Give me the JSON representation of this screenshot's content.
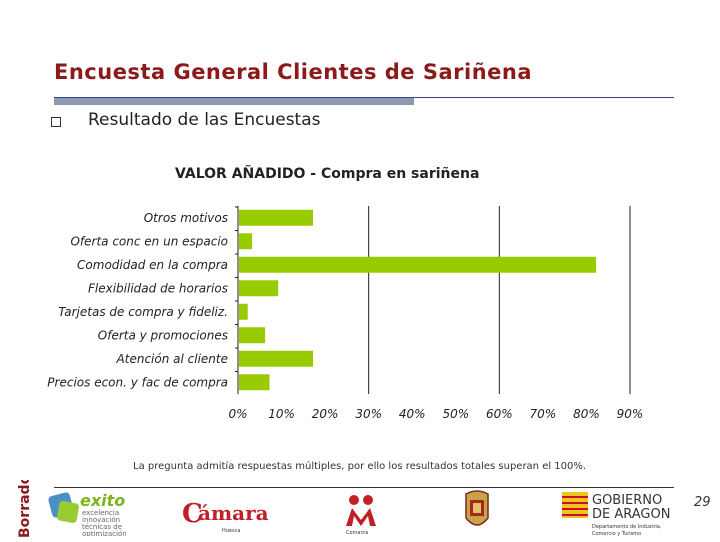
{
  "slide": {
    "title": "Encuesta General Clientes de Sariñena",
    "bullet": "Resultado de las Encuestas",
    "footnote": "La pregunta admitía respuestas múltiples, por ello los resultados totales superan el 100%.",
    "page_number": "29",
    "watermark": "Borrador"
  },
  "logos": {
    "exito": {
      "name": "exito",
      "lines": [
        "excelencia",
        "innovación",
        "técnicas de",
        "optimización"
      ]
    },
    "camara": {
      "name": "cámara",
      "sub": "Huesca"
    },
    "comarca": {
      "name": "Comarca"
    },
    "gobierno": {
      "line1": "GOBIERNO",
      "line2": "DE ARAGON",
      "line3": "Departamento de Industria,",
      "line4": "Comercio y Turismo"
    }
  },
  "colors": {
    "bar": "#99cc00",
    "title": "#8b1a1a"
  },
  "chart_data": {
    "type": "bar",
    "orientation": "horizontal",
    "title": "VALOR AÑADIDO - Compra en sariñena",
    "categories": [
      "Otros motivos",
      "Oferta conc en un espacio",
      "Comodidad en la compra",
      "Flexibilidad de horarios",
      "Tarjetas de compra y fideliz.",
      "Oferta y promociones",
      "Atención al cliente",
      "Precios econ. y fac de compra"
    ],
    "values": [
      17,
      3,
      82,
      9,
      2,
      6,
      17,
      7
    ],
    "xlim": [
      0,
      90
    ],
    "xticks": [
      "0%",
      "10%",
      "20%",
      "30%",
      "40%",
      "50%",
      "60%",
      "70%",
      "80%",
      "90%"
    ],
    "tick_values": [
      0,
      10,
      20,
      30,
      40,
      50,
      60,
      70,
      80,
      90
    ],
    "grid_values": [
      30,
      60,
      90
    ],
    "grid": true
  }
}
